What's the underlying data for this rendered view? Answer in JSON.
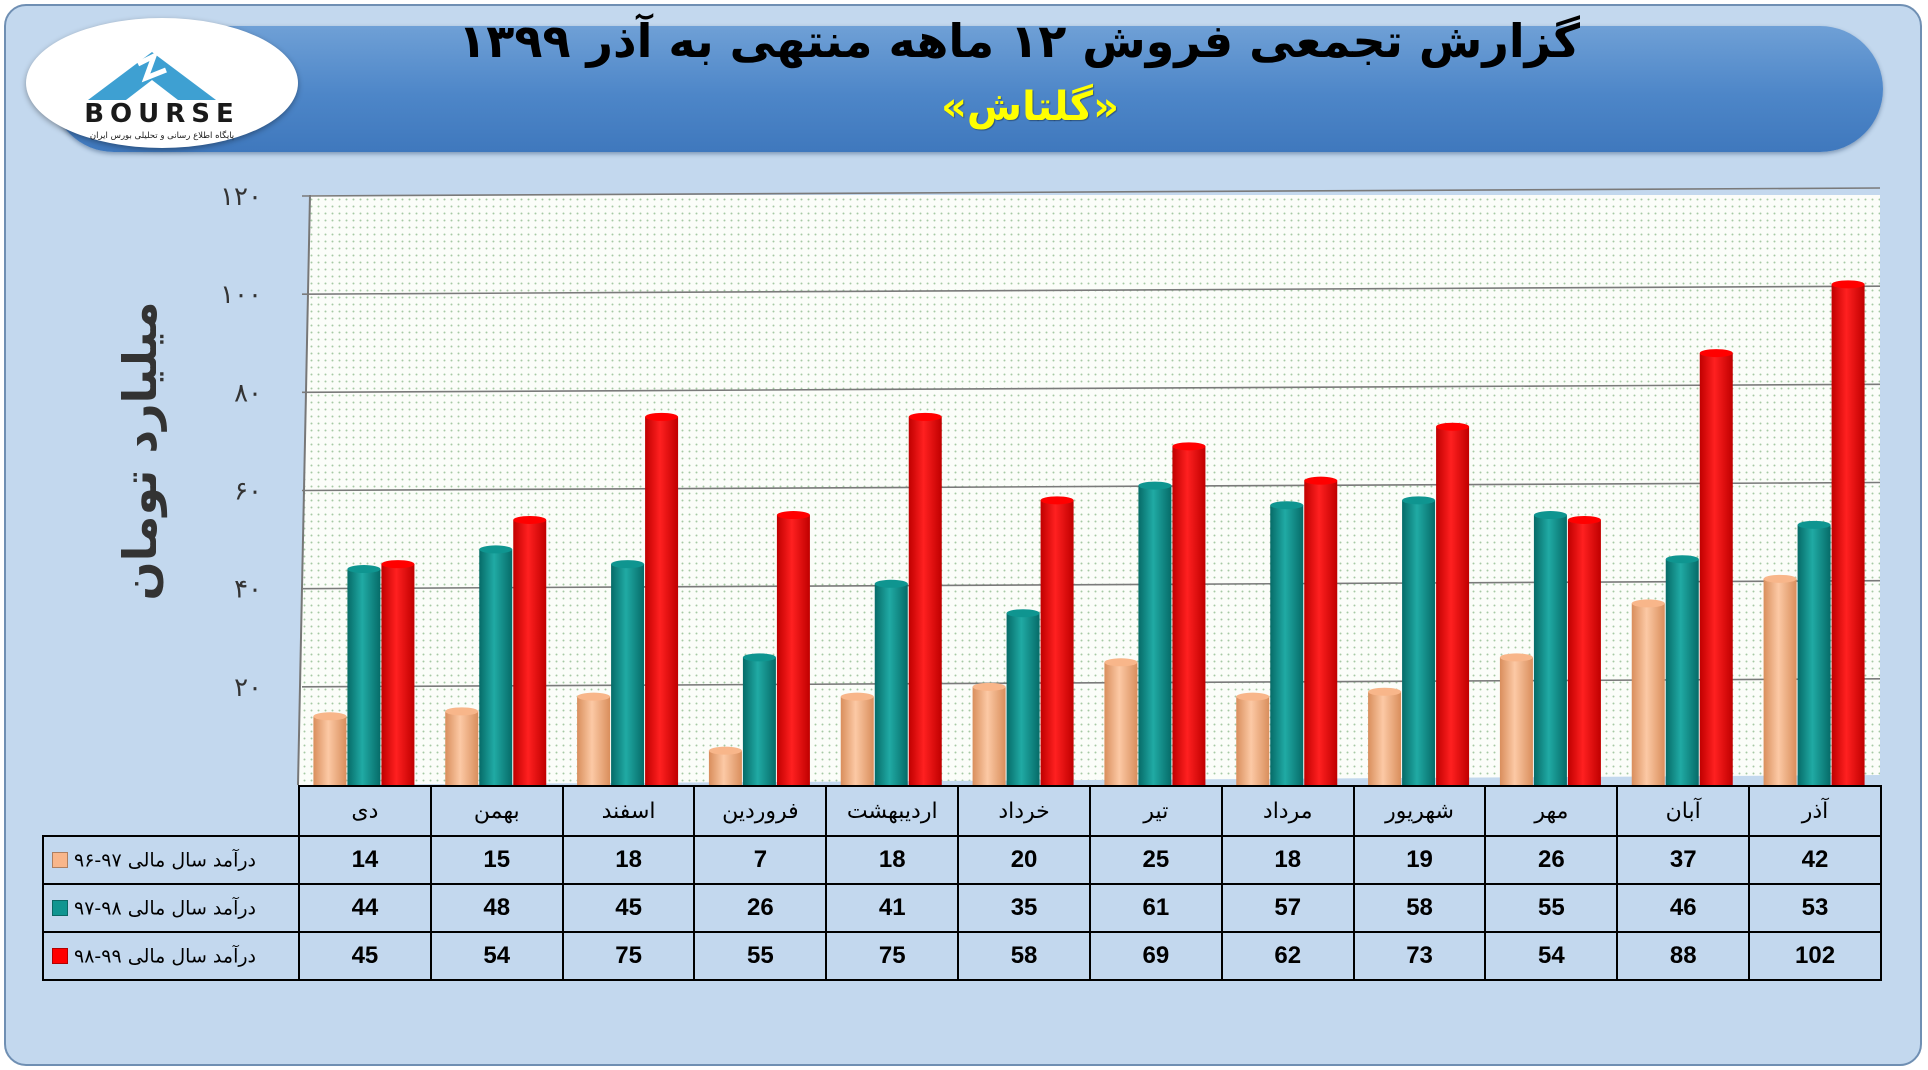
{
  "header": {
    "title": "گزارش تجمعی فروش ۱۲ ماهه منتهی به آذر ۱۳۹۹",
    "subtitle": "«گلتاش»",
    "logo_text": "BOURSE",
    "logo_tagline": "پایگاه اطلاع رسانی و تحلیلی بورس ایران"
  },
  "colors": {
    "series_1": "#f8b68a",
    "series_2": "#0f9590",
    "series_3": "#ff0000",
    "plot_bg": "#fbfdf9",
    "grid_dot": "#a6c9a4"
  },
  "chart_data": {
    "type": "bar",
    "ylabel": "میلیارد تومان",
    "ylim": [
      0,
      120
    ],
    "yticks": [
      "۲۰",
      "۴۰",
      "۶۰",
      "۸۰",
      "۱۰۰",
      "۱۲۰"
    ],
    "ytick_values": [
      20,
      40,
      60,
      80,
      100,
      120
    ],
    "categories": [
      "دی",
      "بهمن",
      "اسفند",
      "فروردین",
      "اردیبهشت",
      "خرداد",
      "تیر",
      "مرداد",
      "شهریور",
      "مهر",
      "آبان",
      "آذر"
    ],
    "series": [
      {
        "name": "درآمد سال مالی ۹۷-۹۶",
        "values": [
          14,
          15,
          18,
          7,
          18,
          20,
          25,
          18,
          19,
          26,
          37,
          42
        ]
      },
      {
        "name": "درآمد سال مالی ۹۸-۹۷",
        "values": [
          44,
          48,
          45,
          26,
          41,
          35,
          61,
          57,
          58,
          55,
          46,
          53
        ]
      },
      {
        "name": "درآمد سال مالی ۹۹-۹۸",
        "values": [
          45,
          54,
          75,
          55,
          75,
          58,
          69,
          62,
          73,
          54,
          88,
          102
        ]
      }
    ],
    "grid": true,
    "legend": "in-table"
  }
}
